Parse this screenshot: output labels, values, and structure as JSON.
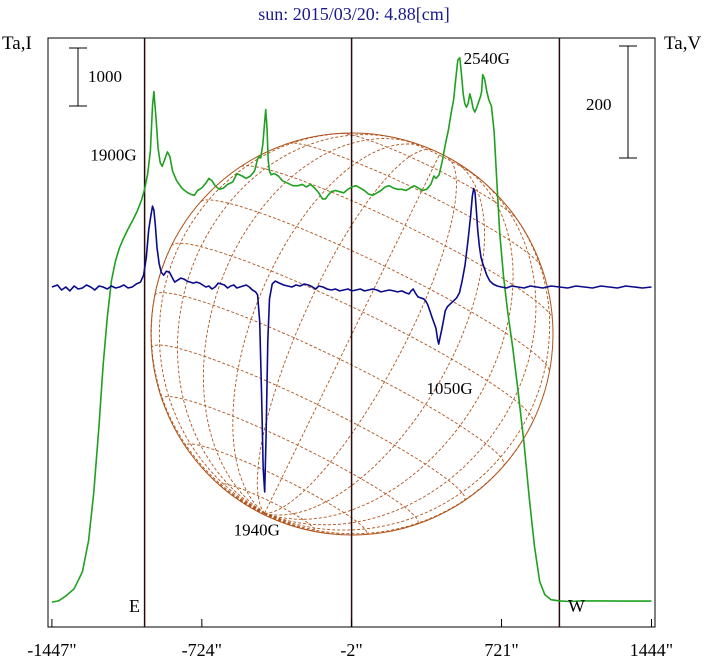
{
  "title": "sun: 2015/03/20: 4.88[cm]",
  "left_axis_label": "Ta,I",
  "right_axis_label": "Ta,V",
  "left_scale_bar": "1000",
  "right_scale_bar": "200",
  "limb_labels": {
    "east": "E",
    "west": "W"
  },
  "colors": {
    "intensity": "#1fa01f",
    "polarization": "#0a0a8c",
    "grid": "#b0531a",
    "axis": "#000000",
    "title": "#1a1a8c"
  },
  "chart_data": {
    "type": "line",
    "xlabel": "",
    "x_ticks": [
      -1447,
      -724,
      -2,
      721,
      1444
    ],
    "x_tick_labels": [
      "-1447\"",
      "-724\"",
      "-2\"",
      "721\"",
      "1444\""
    ],
    "xlim": [
      -1447,
      1444
    ],
    "limb_lines": [
      -1000,
      -2,
      1000
    ],
    "series": [
      {
        "key": "I",
        "color": "#1fa01f",
        "points": [
          [
            -1447,
            190
          ],
          [
            -1415,
            200
          ],
          [
            -1380,
            240
          ],
          [
            -1340,
            300
          ],
          [
            -1300,
            440
          ],
          [
            -1270,
            700
          ],
          [
            -1245,
            1100
          ],
          [
            -1220,
            1650
          ],
          [
            -1200,
            2150
          ],
          [
            -1180,
            2550
          ],
          [
            -1160,
            2850
          ],
          [
            -1140,
            3020
          ],
          [
            -1120,
            3130
          ],
          [
            -1100,
            3210
          ],
          [
            -1080,
            3280
          ],
          [
            -1055,
            3360
          ],
          [
            -1035,
            3430
          ],
          [
            -1015,
            3520
          ],
          [
            -1000,
            3610
          ],
          [
            -985,
            3740
          ],
          [
            -972,
            3930
          ],
          [
            -962,
            4300
          ],
          [
            -955,
            4420
          ],
          [
            -945,
            4200
          ],
          [
            -935,
            3950
          ],
          [
            -925,
            3830
          ],
          [
            -915,
            3800
          ],
          [
            -900,
            3870
          ],
          [
            -890,
            3920
          ],
          [
            -878,
            3880
          ],
          [
            -865,
            3760
          ],
          [
            -845,
            3680
          ],
          [
            -820,
            3620
          ],
          [
            -800,
            3590
          ],
          [
            -780,
            3570
          ],
          [
            -760,
            3560
          ],
          [
            -745,
            3600
          ],
          [
            -725,
            3620
          ],
          [
            -705,
            3660
          ],
          [
            -690,
            3700
          ],
          [
            -675,
            3680
          ],
          [
            -660,
            3640
          ],
          [
            -640,
            3610
          ],
          [
            -620,
            3620
          ],
          [
            -600,
            3650
          ],
          [
            -575,
            3670
          ],
          [
            -555,
            3740
          ],
          [
            -530,
            3720
          ],
          [
            -510,
            3700
          ],
          [
            -490,
            3720
          ],
          [
            -470,
            3760
          ],
          [
            -455,
            3860
          ],
          [
            -448,
            3880
          ],
          [
            -440,
            3870
          ],
          [
            -430,
            3980
          ],
          [
            -422,
            4150
          ],
          [
            -416,
            4270
          ],
          [
            -410,
            4120
          ],
          [
            -404,
            3850
          ],
          [
            -398,
            3760
          ],
          [
            -390,
            3730
          ],
          [
            -375,
            3740
          ],
          [
            -355,
            3720
          ],
          [
            -335,
            3680
          ],
          [
            -310,
            3660
          ],
          [
            -285,
            3640
          ],
          [
            -260,
            3640
          ],
          [
            -240,
            3650
          ],
          [
            -220,
            3630
          ],
          [
            -200,
            3650
          ],
          [
            -180,
            3620
          ],
          [
            -160,
            3580
          ],
          [
            -142,
            3530
          ],
          [
            -128,
            3530
          ],
          [
            -115,
            3560
          ],
          [
            -100,
            3590
          ],
          [
            -80,
            3600
          ],
          [
            -60,
            3590
          ],
          [
            -40,
            3580
          ],
          [
            -20,
            3610
          ],
          [
            0,
            3630
          ],
          [
            20,
            3640
          ],
          [
            40,
            3620
          ],
          [
            60,
            3600
          ],
          [
            80,
            3570
          ],
          [
            100,
            3560
          ],
          [
            120,
            3580
          ],
          [
            140,
            3600
          ],
          [
            160,
            3630
          ],
          [
            180,
            3640
          ],
          [
            200,
            3620
          ],
          [
            220,
            3610
          ],
          [
            240,
            3610
          ],
          [
            260,
            3600
          ],
          [
            280,
            3620
          ],
          [
            300,
            3640
          ],
          [
            320,
            3620
          ],
          [
            340,
            3600
          ],
          [
            360,
            3610
          ],
          [
            380,
            3650
          ],
          [
            395,
            3720
          ],
          [
            405,
            3700
          ],
          [
            420,
            3730
          ],
          [
            435,
            3840
          ],
          [
            450,
            3980
          ],
          [
            465,
            4100
          ],
          [
            478,
            4240
          ],
          [
            490,
            4350
          ],
          [
            500,
            4520
          ],
          [
            510,
            4680
          ],
          [
            520,
            4700
          ],
          [
            528,
            4560
          ],
          [
            536,
            4400
          ],
          [
            544,
            4320
          ],
          [
            552,
            4290
          ],
          [
            560,
            4320
          ],
          [
            568,
            4400
          ],
          [
            576,
            4350
          ],
          [
            584,
            4280
          ],
          [
            592,
            4250
          ],
          [
            600,
            4280
          ],
          [
            610,
            4330
          ],
          [
            620,
            4380
          ],
          [
            625,
            4420
          ],
          [
            630,
            4560
          ],
          [
            640,
            4520
          ],
          [
            650,
            4420
          ],
          [
            660,
            4350
          ],
          [
            672,
            4300
          ],
          [
            685,
            4090
          ],
          [
            698,
            3680
          ],
          [
            712,
            3250
          ],
          [
            730,
            2900
          ],
          [
            750,
            2600
          ],
          [
            775,
            2300
          ],
          [
            800,
            1950
          ],
          [
            830,
            1500
          ],
          [
            855,
            1050
          ],
          [
            880,
            650
          ],
          [
            905,
            360
          ],
          [
            930,
            250
          ],
          [
            960,
            210
          ],
          [
            1000,
            200
          ],
          [
            1050,
            195
          ],
          [
            1100,
            200
          ],
          [
            1200,
            200
          ],
          [
            1300,
            198
          ],
          [
            1444,
            198
          ]
        ]
      },
      {
        "key": "V",
        "color": "#0a0a8c",
        "points": [
          [
            -1447,
            0
          ],
          [
            -1420,
            2
          ],
          [
            -1400,
            -3
          ],
          [
            -1380,
            0
          ],
          [
            -1360,
            -4
          ],
          [
            -1340,
            1
          ],
          [
            -1320,
            -2
          ],
          [
            -1300,
            -1
          ],
          [
            -1280,
            2
          ],
          [
            -1260,
            0
          ],
          [
            -1240,
            -3
          ],
          [
            -1220,
            1
          ],
          [
            -1200,
            0
          ],
          [
            -1180,
            -2
          ],
          [
            -1160,
            1
          ],
          [
            -1140,
            -1
          ],
          [
            -1120,
            0
          ],
          [
            -1100,
            2
          ],
          [
            -1080,
            -1
          ],
          [
            -1060,
            0
          ],
          [
            -1040,
            3
          ],
          [
            -1020,
            5
          ],
          [
            -1005,
            12
          ],
          [
            -992,
            30
          ],
          [
            -980,
            58
          ],
          [
            -970,
            72
          ],
          [
            -962,
            82
          ],
          [
            -955,
            78
          ],
          [
            -948,
            62
          ],
          [
            -940,
            40
          ],
          [
            -930,
            24
          ],
          [
            -920,
            15
          ],
          [
            -908,
            12
          ],
          [
            -895,
            16
          ],
          [
            -880,
            15
          ],
          [
            -868,
            10
          ],
          [
            -855,
            5
          ],
          [
            -840,
            7
          ],
          [
            -825,
            9
          ],
          [
            -810,
            8
          ],
          [
            -795,
            6
          ],
          [
            -780,
            5
          ],
          [
            -765,
            4
          ],
          [
            -750,
            5
          ],
          [
            -735,
            4
          ],
          [
            -720,
            2
          ],
          [
            -705,
            0
          ],
          [
            -690,
            1
          ],
          [
            -675,
            -2
          ],
          [
            -660,
            0
          ],
          [
            -645,
            4
          ],
          [
            -630,
            3
          ],
          [
            -615,
            2
          ],
          [
            -600,
            -1
          ],
          [
            -585,
            1
          ],
          [
            -570,
            2
          ],
          [
            -555,
            -1
          ],
          [
            -540,
            0
          ],
          [
            -525,
            1
          ],
          [
            -510,
            2
          ],
          [
            -495,
            0
          ],
          [
            -480,
            -3
          ],
          [
            -465,
            -5
          ],
          [
            -455,
            -8
          ],
          [
            -445,
            -35
          ],
          [
            -436,
            -110
          ],
          [
            -428,
            -185
          ],
          [
            -421,
            -208
          ],
          [
            -414,
            -150
          ],
          [
            -406,
            -55
          ],
          [
            -398,
            -12
          ],
          [
            -385,
            3
          ],
          [
            -370,
            6
          ],
          [
            -350,
            4
          ],
          [
            -330,
            2
          ],
          [
            -310,
            1
          ],
          [
            -290,
            0
          ],
          [
            -270,
            2
          ],
          [
            -250,
            1
          ],
          [
            -230,
            3
          ],
          [
            -210,
            2
          ],
          [
            -190,
            0
          ],
          [
            -175,
            -2
          ],
          [
            -160,
            1
          ],
          [
            -140,
            0
          ],
          [
            -120,
            -2
          ],
          [
            -100,
            -3
          ],
          [
            -80,
            -2
          ],
          [
            -60,
            -4
          ],
          [
            -40,
            -3
          ],
          [
            -20,
            -2
          ],
          [
            0,
            -4
          ],
          [
            20,
            -3
          ],
          [
            40,
            -2
          ],
          [
            60,
            -4
          ],
          [
            80,
            -3
          ],
          [
            100,
            -2
          ],
          [
            120,
            -3
          ],
          [
            140,
            -5
          ],
          [
            160,
            -4
          ],
          [
            180,
            -3
          ],
          [
            200,
            -4
          ],
          [
            220,
            -5
          ],
          [
            240,
            -4
          ],
          [
            260,
            -6
          ],
          [
            275,
            -7
          ],
          [
            285,
            -4
          ],
          [
            295,
            -2
          ],
          [
            305,
            -6
          ],
          [
            318,
            -10
          ],
          [
            330,
            -11
          ],
          [
            345,
            -12
          ],
          [
            355,
            -14
          ],
          [
            365,
            -18
          ],
          [
            375,
            -24
          ],
          [
            385,
            -30
          ],
          [
            395,
            -36
          ],
          [
            405,
            -42
          ],
          [
            412,
            -52
          ],
          [
            418,
            -58
          ],
          [
            424,
            -52
          ],
          [
            432,
            -44
          ],
          [
            440,
            -35
          ],
          [
            450,
            -24
          ],
          [
            460,
            -20
          ],
          [
            475,
            -17
          ],
          [
            490,
            -14
          ],
          [
            505,
            -11
          ],
          [
            518,
            -6
          ],
          [
            530,
            5
          ],
          [
            545,
            22
          ],
          [
            560,
            48
          ],
          [
            572,
            72
          ],
          [
            580,
            92
          ],
          [
            587,
            100
          ],
          [
            593,
            96
          ],
          [
            599,
            80
          ],
          [
            606,
            58
          ],
          [
            614,
            42
          ],
          [
            622,
            30
          ],
          [
            630,
            24
          ],
          [
            640,
            18
          ],
          [
            650,
            12
          ],
          [
            665,
            6
          ],
          [
            680,
            3
          ],
          [
            700,
            1
          ],
          [
            720,
            0
          ],
          [
            745,
            -1
          ],
          [
            770,
            1
          ],
          [
            800,
            0
          ],
          [
            830,
            -1
          ],
          [
            860,
            1
          ],
          [
            890,
            0
          ],
          [
            920,
            -1
          ],
          [
            960,
            1
          ],
          [
            1000,
            0
          ],
          [
            1040,
            -1
          ],
          [
            1080,
            1
          ],
          [
            1120,
            0
          ],
          [
            1160,
            -1
          ],
          [
            1200,
            1
          ],
          [
            1240,
            0
          ],
          [
            1280,
            -1
          ],
          [
            1320,
            1
          ],
          [
            1360,
            0
          ],
          [
            1400,
            -1
          ],
          [
            1444,
            0
          ]
        ]
      }
    ],
    "annotations": [
      {
        "text": "1900G",
        "x": -1150,
        "at_series": "I",
        "at": 3800
      },
      {
        "text": "1940G",
        "x": -459,
        "at_series": "V",
        "at": -224
      },
      {
        "text": "2540G",
        "x": 650,
        "at_series": "I",
        "at": 4600
      },
      {
        "text": "1050G",
        "x": 470,
        "at_series": "V",
        "at": -80
      }
    ]
  }
}
